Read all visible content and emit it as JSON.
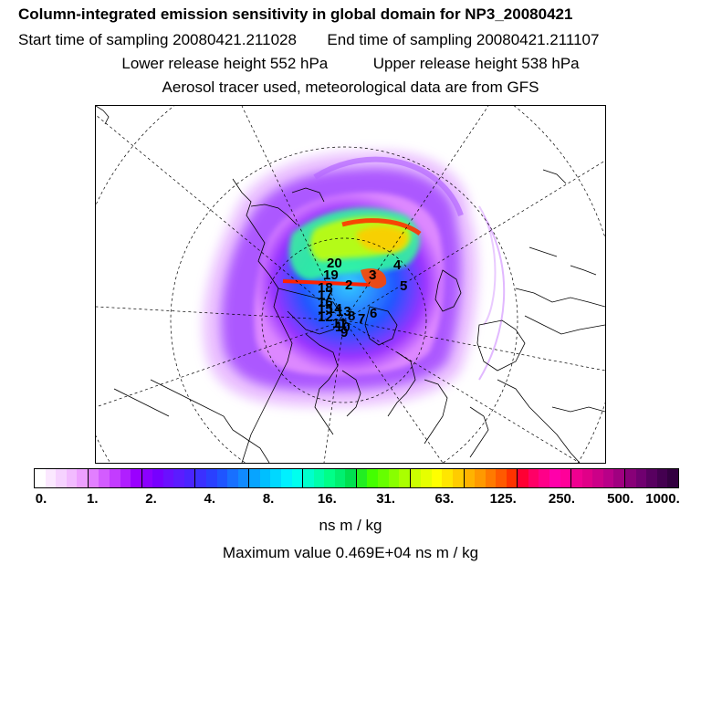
{
  "header": {
    "title": "Column-integrated emission sensitivity in global domain for NP3_20080421",
    "start_label": "Start time of sampling 20080421.211028",
    "end_label": "End time of sampling 20080421.211107",
    "lower_label": "Lower release height  552 hPa",
    "upper_label": "Upper release height  538 hPa",
    "tracer_label": "Aerosol tracer used, meteorological data are from GFS"
  },
  "colorbar": {
    "ticks": [
      "0.",
      "1.",
      "2.",
      "4.",
      "8.",
      "16.",
      "31.",
      "63.",
      "125.",
      "250.",
      "500.",
      "1000."
    ],
    "colors": [
      "#ffffff",
      "#fbe8ff",
      "#f6d2ff",
      "#f2bbff",
      "#eda0ff",
      "#e27fff",
      "#d35cff",
      "#c33cff",
      "#b01fff",
      "#9a00ff",
      "#8b00ff",
      "#7700ff",
      "#6a10ff",
      "#5b1cff",
      "#4a24ff",
      "#3b30ff",
      "#2a40ff",
      "#1f55ff",
      "#1870ff",
      "#108aff",
      "#08a4ff",
      "#00bfff",
      "#00d8ff",
      "#00f0ff",
      "#00ffee",
      "#00ffcc",
      "#00ffaa",
      "#00ff88",
      "#00f070",
      "#00e050",
      "#22ee22",
      "#44ff00",
      "#66ff00",
      "#88ff00",
      "#aaff00",
      "#ccff00",
      "#e6ff00",
      "#ffff00",
      "#ffe600",
      "#ffcc00",
      "#ffb300",
      "#ff9900",
      "#ff7a00",
      "#ff5a00",
      "#ff3300",
      "#ff0033",
      "#ff0066",
      "#ff0088",
      "#ff00aa",
      "#ff0099",
      "#f00090",
      "#e00088",
      "#cc0088",
      "#b80088",
      "#a00080",
      "#880078",
      "#700070",
      "#580060",
      "#440050",
      "#330040"
    ]
  },
  "units_label": "ns m / kg",
  "max_label": "Maximum value  0.469E+04 ns m / kg",
  "map": {
    "receptor_labels": [
      "20",
      "19",
      "18",
      "17",
      "16",
      "15",
      "14",
      "13",
      "12",
      "11",
      "10",
      "9",
      "8",
      "7",
      "6",
      "5",
      "4",
      "3",
      "2"
    ]
  }
}
